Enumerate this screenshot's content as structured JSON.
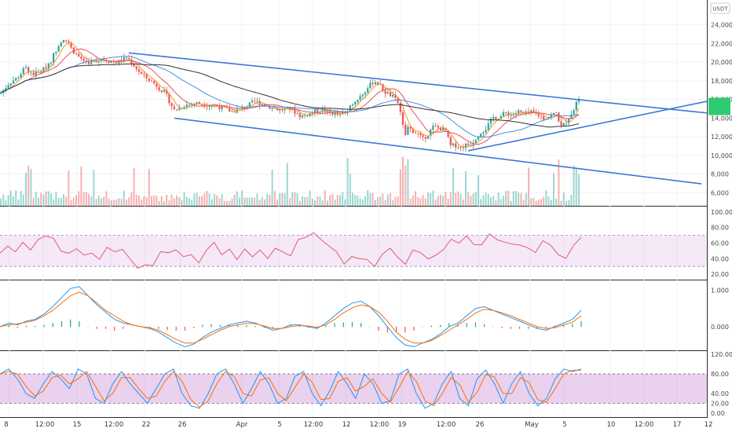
{
  "chart_data": [
    {
      "panel": "price",
      "type": "candlestick",
      "currency_badge": "USDT",
      "y_ticks": [
        {
          "value": 24000,
          "label": "24,000"
        },
        {
          "value": 22000,
          "label": "22,000"
        },
        {
          "value": 20000,
          "label": "20,000"
        },
        {
          "value": 18000,
          "label": "18,000"
        },
        {
          "value": 16000,
          "label": "16,000"
        },
        {
          "value": 14000,
          "label": "14,000"
        },
        {
          "value": 12000,
          "label": "12,000"
        },
        {
          "value": 10000,
          "label": "10,000"
        },
        {
          "value": 8000,
          "label": "8,000"
        },
        {
          "value": 6000,
          "label": "6,000"
        }
      ],
      "ylim": [
        4600,
        26500
      ],
      "last_price": 15250,
      "close_path": [
        [
          0,
          16600
        ],
        [
          12,
          17800
        ],
        [
          22,
          18300
        ],
        [
          32,
          19400
        ],
        [
          42,
          18700
        ],
        [
          55,
          19200
        ],
        [
          65,
          20200
        ],
        [
          74,
          21800
        ],
        [
          80,
          22600
        ],
        [
          86,
          22200
        ],
        [
          92,
          21300
        ],
        [
          100,
          20600
        ],
        [
          110,
          20000
        ],
        [
          120,
          20100
        ],
        [
          130,
          20400
        ],
        [
          140,
          20100
        ],
        [
          150,
          20000
        ],
        [
          162,
          20500
        ],
        [
          170,
          19700
        ],
        [
          180,
          18700
        ],
        [
          195,
          17800
        ],
        [
          210,
          16700
        ],
        [
          222,
          14800
        ],
        [
          235,
          15400
        ],
        [
          250,
          15600
        ],
        [
          265,
          15400
        ],
        [
          280,
          15200
        ],
        [
          295,
          14700
        ],
        [
          310,
          15100
        ],
        [
          325,
          15800
        ],
        [
          340,
          15300
        ],
        [
          355,
          14900
        ],
        [
          370,
          15000
        ],
        [
          383,
          14200
        ],
        [
          395,
          14500
        ],
        [
          408,
          14900
        ],
        [
          420,
          14600
        ],
        [
          432,
          14300
        ],
        [
          442,
          14700
        ],
        [
          452,
          15800
        ],
        [
          462,
          16600
        ],
        [
          470,
          17400
        ],
        [
          476,
          18000
        ],
        [
          482,
          17700
        ],
        [
          490,
          16800
        ],
        [
          500,
          16300
        ],
        [
          508,
          15500
        ],
        [
          512,
          13500
        ],
        [
          516,
          12000
        ],
        [
          520,
          13000
        ],
        [
          526,
          12600
        ],
        [
          532,
          12300
        ],
        [
          538,
          11700
        ],
        [
          545,
          12300
        ],
        [
          552,
          13100
        ],
        [
          560,
          12900
        ],
        [
          568,
          12600
        ],
        [
          573,
          11000
        ],
        [
          580,
          11100
        ],
        [
          586,
          10800
        ],
        [
          592,
          11100
        ],
        [
          600,
          11200
        ],
        [
          605,
          11800
        ],
        [
          612,
          12500
        ],
        [
          620,
          13000
        ],
        [
          628,
          14100
        ],
        [
          636,
          14100
        ],
        [
          644,
          14600
        ],
        [
          652,
          14300
        ],
        [
          660,
          14700
        ],
        [
          668,
          14400
        ],
        [
          676,
          14600
        ],
        [
          684,
          14400
        ],
        [
          692,
          14000
        ],
        [
          700,
          14200
        ],
        [
          708,
          14600
        ],
        [
          715,
          13000
        ],
        [
          720,
          13500
        ],
        [
          726,
          14400
        ],
        [
          732,
          15000
        ],
        [
          736,
          16400
        ],
        [
          740,
          16000
        ]
      ],
      "volume_ticks": {
        "scale_max": 12000,
        "path_hint": "bars"
      },
      "moving_averages": [
        {
          "color": "#f7931e",
          "role": "fast"
        },
        {
          "color": "#e8505b",
          "role": "medium"
        },
        {
          "color": "#4a90e2",
          "role": "slow"
        },
        {
          "color": "#333333",
          "role": "long"
        }
      ],
      "trendlines": [
        {
          "color": "#3c78d8",
          "from": {
            "xday": 164,
            "price": 21000
          },
          "to": {
            "xday": 900,
            "price": 14550
          }
        },
        {
          "color": "#3c78d8",
          "from": {
            "xday": 222,
            "price": 14000
          },
          "to": {
            "xday": 893,
            "price": 6950
          }
        },
        {
          "color": "#3c78d8",
          "from": {
            "xday": 596,
            "price": 10500
          },
          "to": {
            "xday": 900,
            "price": 15800
          }
        }
      ]
    },
    {
      "panel": "rsi",
      "type": "line",
      "y_ticks": [
        {
          "value": 100,
          "label": "100.00"
        },
        {
          "value": 80,
          "label": "80.00"
        },
        {
          "value": 60,
          "label": "60.00"
        },
        {
          "value": 40,
          "label": "40.00"
        },
        {
          "value": 20,
          "label": "20.00"
        }
      ],
      "band": [
        30,
        70
      ],
      "ylim": [
        13,
        106
      ],
      "series": [
        {
          "values": [
            45,
            55,
            48,
            60,
            52,
            62,
            70,
            65,
            50,
            48,
            55,
            45,
            50,
            42,
            55,
            47,
            50,
            38,
            30,
            35,
            28,
            50,
            45,
            52,
            40,
            48,
            35,
            52,
            60,
            45,
            50,
            40,
            55,
            45,
            52,
            40,
            55,
            50,
            45,
            62,
            68,
            72,
            65,
            58,
            50,
            35,
            45,
            40,
            38,
            30,
            45,
            55,
            40,
            35,
            52,
            48,
            40,
            45,
            50,
            62,
            58,
            70,
            60,
            55,
            72,
            65,
            62,
            58,
            60,
            55,
            50,
            62,
            58,
            45,
            40,
            55,
            70
          ]
        }
      ]
    },
    {
      "panel": "macd",
      "type": "line",
      "y_ticks": [
        {
          "value": 1.0,
          "label": "1.000"
        },
        {
          "value": 0.0,
          "label": "0.000"
        }
      ],
      "ylim": [
        -0.65,
        1.25
      ],
      "series": [
        {
          "values": [
            0.0,
            0.1,
            0.05,
            0.15,
            0.2,
            0.35,
            0.55,
            0.8,
            1.05,
            1.1,
            0.85,
            0.6,
            0.4,
            0.2,
            0.1,
            0.05,
            0.0,
            -0.05,
            -0.15,
            -0.3,
            -0.45,
            -0.55,
            -0.48,
            -0.3,
            -0.15,
            -0.05,
            0.05,
            0.1,
            0.15,
            0.1,
            0.0,
            -0.1,
            -0.05,
            0.05,
            0.05,
            0.0,
            -0.05,
            0.1,
            0.3,
            0.5,
            0.65,
            0.7,
            0.55,
            0.3,
            0.0,
            -0.3,
            -0.5,
            -0.55,
            -0.45,
            -0.35,
            -0.2,
            0.0,
            0.1,
            0.3,
            0.5,
            0.55,
            0.45,
            0.35,
            0.25,
            0.15,
            0.05,
            -0.05,
            -0.1,
            0.0,
            0.1,
            0.2,
            0.45
          ]
        },
        {
          "values": [
            0.0,
            0.05,
            0.08,
            0.12,
            0.18,
            0.3,
            0.45,
            0.65,
            0.85,
            0.95,
            0.85,
            0.65,
            0.45,
            0.3,
            0.15,
            0.05,
            0.0,
            -0.03,
            -0.1,
            -0.22,
            -0.35,
            -0.45,
            -0.45,
            -0.35,
            -0.22,
            -0.1,
            0.0,
            0.05,
            0.1,
            0.08,
            0.02,
            -0.05,
            -0.05,
            0.0,
            0.03,
            0.02,
            -0.02,
            0.05,
            0.2,
            0.38,
            0.52,
            0.6,
            0.55,
            0.4,
            0.15,
            -0.15,
            -0.35,
            -0.45,
            -0.45,
            -0.38,
            -0.25,
            -0.1,
            0.05,
            0.2,
            0.38,
            0.48,
            0.45,
            0.38,
            0.3,
            0.2,
            0.1,
            0.0,
            -0.05,
            -0.03,
            0.05,
            0.12,
            0.3
          ]
        }
      ]
    },
    {
      "panel": "stoch",
      "type": "line",
      "y_ticks": [
        {
          "value": 120,
          "label": "120.00"
        },
        {
          "value": 80,
          "label": "80.00"
        },
        {
          "value": 40,
          "label": "40.00"
        },
        {
          "value": 20,
          "label": "20.00"
        },
        {
          "value": 0,
          "label": "0.00"
        }
      ],
      "band": [
        20,
        80
      ],
      "ylim": [
        -8,
        125
      ],
      "series": [
        {
          "values": [
            80,
            90,
            70,
            40,
            30,
            60,
            85,
            70,
            50,
            90,
            80,
            30,
            20,
            60,
            85,
            60,
            40,
            20,
            50,
            80,
            90,
            40,
            15,
            10,
            40,
            80,
            90,
            60,
            20,
            50,
            85,
            60,
            20,
            30,
            75,
            85,
            40,
            15,
            45,
            85,
            60,
            30,
            80,
            60,
            20,
            25,
            80,
            90,
            40,
            10,
            20,
            60,
            85,
            30,
            15,
            70,
            88,
            60,
            20,
            60,
            85,
            40,
            15,
            30,
            70,
            90,
            85,
            90
          ]
        }
      ]
    },
    {
      "panel": "time_axis",
      "labels": [
        "8",
        "12:00",
        "15",
        "12:00",
        "22",
        "26",
        "Apr",
        "5",
        "12:00",
        "12",
        "12:00",
        "19",
        "12:00",
        "26",
        "May",
        "5",
        "10",
        "12:00",
        "17",
        "12"
      ]
    }
  ]
}
